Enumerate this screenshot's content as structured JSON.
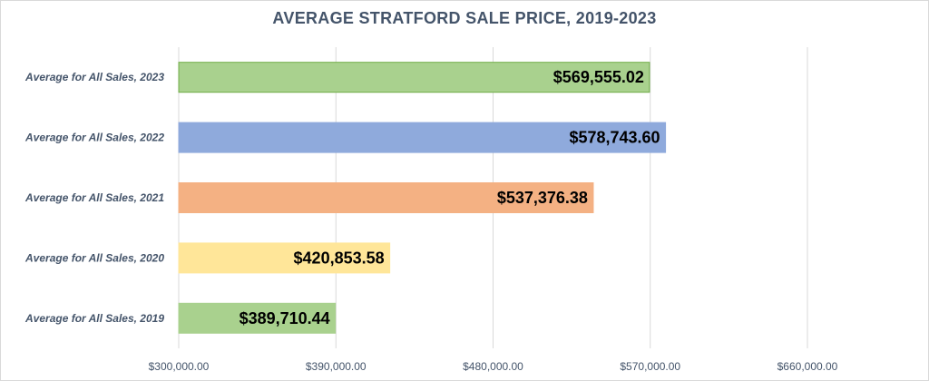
{
  "chart_data": {
    "type": "bar",
    "orientation": "horizontal",
    "title": "AVERAGE STRATFORD SALE PRICE, 2019-2023",
    "xlabel": "",
    "ylabel": "",
    "xlim": [
      300000,
      660000
    ],
    "grid": true,
    "legend": "none",
    "categories": [
      "Average for All Sales, 2023",
      "Average for All Sales, 2022",
      "Average for All Sales, 2021",
      "Average for All Sales, 2020",
      "Average for All Sales, 2019"
    ],
    "values": [
      569555.02,
      578743.6,
      537376.38,
      420853.58,
      389710.44
    ],
    "data_labels": [
      "$569,555.02",
      "$578,743.60",
      "$537,376.38",
      "$420,853.58",
      "$389,710.44"
    ],
    "colors": [
      "#a9d18e",
      "#8faadc",
      "#f4b183",
      "#ffe699",
      "#a9d18e"
    ],
    "border_colors": [
      "#70ad47",
      "#8faadc",
      "#f4b183",
      "#ffe699",
      "#a9d18e"
    ],
    "ticks": [
      300000,
      390000,
      480000,
      570000,
      660000
    ],
    "tick_labels": [
      "$300,000.00",
      "$390,000.00",
      "$480,000.00",
      "$570,000.00",
      "$660,000.00"
    ]
  }
}
